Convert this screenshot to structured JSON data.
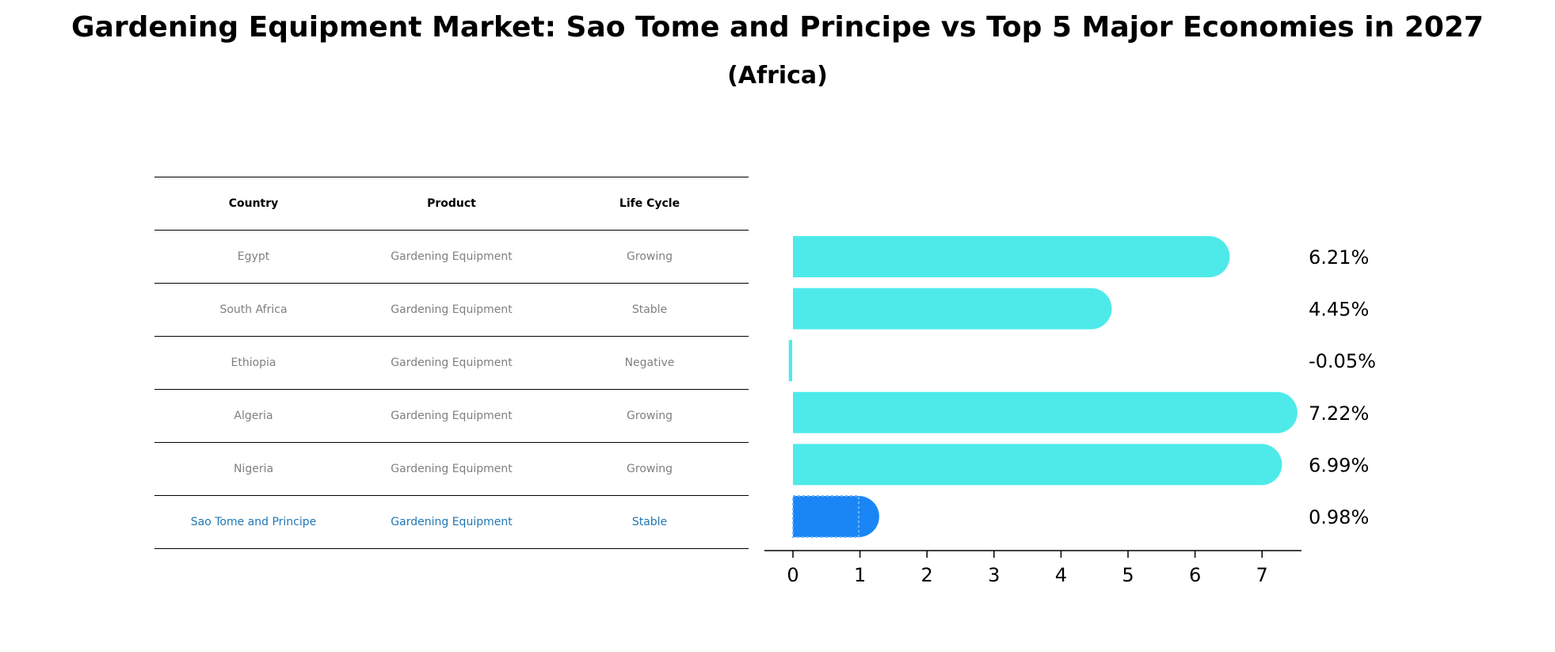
{
  "title": "Gardening Equipment Market: Sao Tome and Principe vs Top 5 Major Economies in 2027",
  "subtitle": "(Africa)",
  "table": {
    "headers": [
      "Country",
      "Product",
      "Life Cycle"
    ],
    "rows": [
      {
        "country": "Egypt",
        "product": "Gardening Equipment",
        "life_cycle": "Growing"
      },
      {
        "country": "South Africa",
        "product": "Gardening Equipment",
        "life_cycle": "Stable"
      },
      {
        "country": "Ethiopia",
        "product": "Gardening Equipment",
        "life_cycle": "Negative"
      },
      {
        "country": "Algeria",
        "product": "Gardening Equipment",
        "life_cycle": "Growing"
      },
      {
        "country": "Nigeria",
        "product": "Gardening Equipment",
        "life_cycle": "Growing"
      },
      {
        "country": "Sao Tome and Principe",
        "product": "Gardening Equipment",
        "life_cycle": "Stable"
      }
    ],
    "highlight_color": "#1f77b4",
    "text_color": "#808080"
  },
  "chart_data": {
    "type": "bar",
    "orientation": "horizontal",
    "categories": [
      "Egypt",
      "South Africa",
      "Ethiopia",
      "Algeria",
      "Nigeria",
      "Sao Tome and Principe"
    ],
    "values": [
      6.21,
      4.45,
      -0.05,
      7.22,
      6.99,
      0.98
    ],
    "value_labels": [
      "6.21%",
      "4.45%",
      "-0.05%",
      "7.22%",
      "6.99%",
      "0.98%"
    ],
    "xlim": [
      -0.42,
      7.6
    ],
    "xticks": [
      0,
      1,
      2,
      3,
      4,
      5,
      6,
      7
    ],
    "bar_color": "#4eeaea",
    "highlight_color": "#1a86f5",
    "highlight_index": 5,
    "grid": false
  }
}
